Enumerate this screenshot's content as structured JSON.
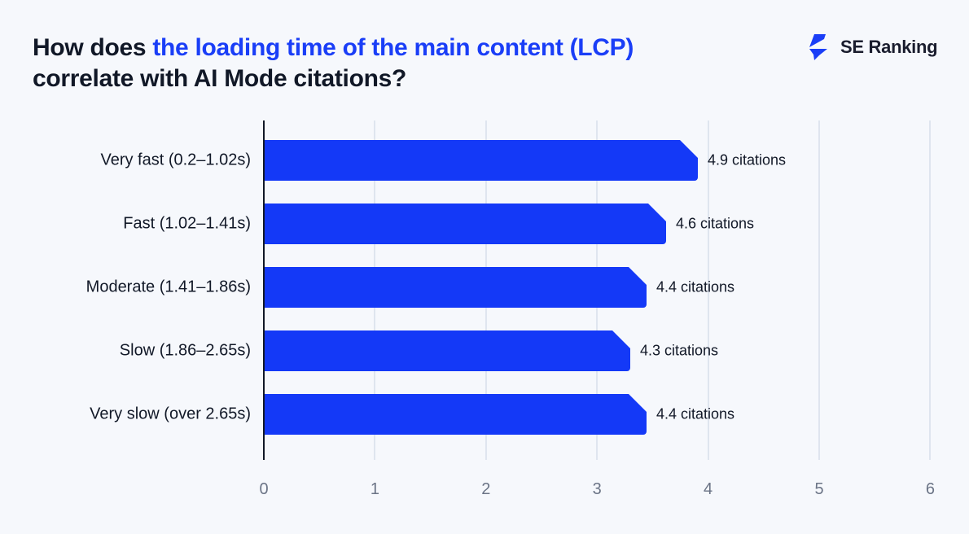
{
  "header": {
    "title_prefix": "How does ",
    "title_highlight": "the loading time of the main content (LCP)",
    "title_suffix": "correlate with AI Mode citations?",
    "brand": "SE Ranking",
    "accent_color": "#1a3ef7"
  },
  "chart_data": {
    "type": "bar",
    "orientation": "horizontal",
    "title": "How does the loading time of the main content (LCP) correlate with AI Mode citations?",
    "categories": [
      "Very fast (0.2–1.02s)",
      "Fast (1.02–1.41s)",
      "Moderate (1.41–1.86s)",
      "Slow (1.86–2.65s)",
      "Very slow (over 2.65s)"
    ],
    "values": [
      4.9,
      4.6,
      4.4,
      4.3,
      4.4
    ],
    "data_labels": [
      "4.9 citations",
      "4.6 citations",
      "4.4 citations",
      "4.3 citations",
      "4.4 citations"
    ],
    "xlabel": "",
    "ylabel": "",
    "xlim": [
      0,
      6
    ],
    "x_ticks": [
      "0",
      "1",
      "2",
      "3",
      "4",
      "5",
      "6"
    ],
    "grid": true,
    "bar_color": "#1439f7"
  }
}
